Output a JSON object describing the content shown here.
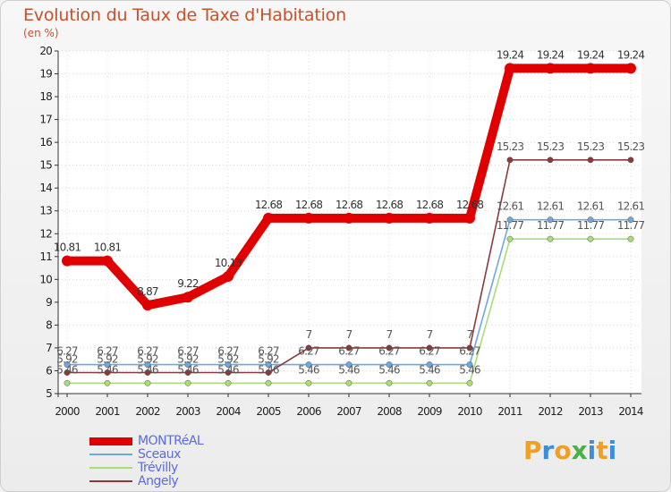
{
  "chart_data": {
    "type": "line",
    "title": "Evolution du Taux de Taxe d'Habitation",
    "ylabel": "(en %)",
    "xlabel": "",
    "ylim": [
      5,
      20
    ],
    "yticks": [
      5,
      6,
      7,
      8,
      9,
      10,
      11,
      12,
      13,
      14,
      15,
      16,
      17,
      18,
      19,
      20
    ],
    "categories": [
      "2000",
      "2001",
      "2002",
      "2003",
      "2004",
      "2005",
      "2006",
      "2007",
      "2008",
      "2009",
      "2010",
      "2011",
      "2012",
      "2013",
      "2014"
    ],
    "series": [
      {
        "name": "MONTRéAL",
        "color": "#e00000",
        "values": [
          10.81,
          10.81,
          8.87,
          9.22,
          10.13,
          12.68,
          12.68,
          12.68,
          12.68,
          12.68,
          12.68,
          19.24,
          19.24,
          19.24,
          19.24
        ],
        "labels": [
          "10.81",
          "10.81",
          "8.87",
          "9.22",
          "10.13",
          "12.68",
          "12.68",
          "12.68",
          "12.68",
          "12.68",
          "12.68",
          "19.24",
          "19.24",
          "19.24",
          "19.24"
        ]
      },
      {
        "name": "Sceaux",
        "color": "#6fa8dc",
        "values": [
          6.27,
          6.27,
          6.27,
          6.27,
          6.27,
          6.27,
          6.27,
          6.27,
          6.27,
          6.27,
          6.27,
          12.61,
          12.61,
          12.61,
          12.61
        ],
        "labels": [
          "6.27",
          "6.27",
          "6.27",
          "6.27",
          "6.27",
          "6.27",
          "6.27",
          "6.27",
          "6.27",
          "6.27",
          "6.27",
          "12.61",
          "12.61",
          "12.61",
          "12.61"
        ]
      },
      {
        "name": "Trévilly",
        "color": "#a9dc7a",
        "values": [
          5.46,
          5.46,
          5.46,
          5.46,
          5.46,
          5.46,
          5.46,
          5.46,
          5.46,
          5.46,
          5.46,
          11.77,
          11.77,
          11.77,
          11.77
        ],
        "labels": [
          "5.46",
          "5.46",
          "5.46",
          "5.46",
          "5.46",
          "5.46",
          "5.46",
          "5.46",
          "5.46",
          "5.46",
          "5.46",
          "11.77",
          "11.77",
          "11.77",
          "11.77"
        ]
      },
      {
        "name": "Angely",
        "color": "#8b3a3a",
        "values": [
          5.92,
          5.92,
          5.92,
          5.92,
          5.92,
          5.92,
          7,
          7,
          7,
          7,
          7,
          15.23,
          15.23,
          15.23,
          15.23
        ],
        "labels": [
          "5.92",
          "5.92",
          "5.92",
          "5.92",
          "5.92",
          "5.92",
          "7",
          "7",
          "7",
          "7",
          "7",
          "15.23",
          "15.23",
          "15.23",
          "15.23"
        ]
      }
    ]
  },
  "logo": {
    "letters": [
      "P",
      "r",
      "o",
      "x",
      "i",
      "t",
      "i"
    ],
    "colors": [
      "#f0a020",
      "#3a8fd8",
      "#f0a020",
      "#4bb04b",
      "#3a8fd8",
      "#f0a020",
      "#3a8fd8"
    ]
  }
}
